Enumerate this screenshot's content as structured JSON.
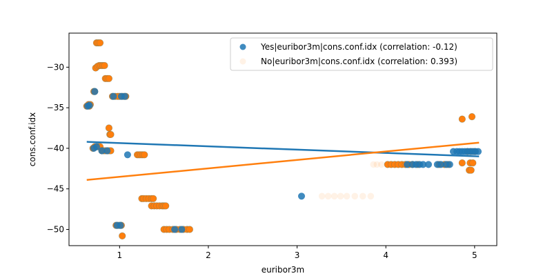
{
  "chart_data": {
    "type": "scatter",
    "xlabel": "euribor3m",
    "ylabel": "cons.conf.idx",
    "xlim": [
      0.43,
      5.25
    ],
    "ylim": [
      -52.0,
      -25.8
    ],
    "xticks": [
      1,
      2,
      3,
      4,
      5
    ],
    "yticks": [
      -50,
      -45,
      -40,
      -35,
      -30
    ],
    "grid": false,
    "legend_position": "top-right",
    "series": [
      {
        "name": "No|euribor3m|cons.conf.idx (correlation: 0.393)",
        "color": "#ff7f0e",
        "trend_line": [
          [
            0.63,
            -43.9
          ],
          [
            5.05,
            -39.3
          ]
        ],
        "points": [
          [
            0.63,
            -34.8
          ],
          [
            0.65,
            -34.6
          ],
          [
            0.66,
            -34.8
          ],
          [
            0.67,
            -34.6
          ],
          [
            0.7,
            -40.0
          ],
          [
            0.72,
            -39.8
          ],
          [
            0.74,
            -39.8
          ],
          [
            0.76,
            -39.8
          ],
          [
            0.78,
            -39.8
          ],
          [
            0.71,
            -33.0
          ],
          [
            0.72,
            -33.0
          ],
          [
            0.73,
            -30.1
          ],
          [
            0.75,
            -29.9
          ],
          [
            0.77,
            -29.8
          ],
          [
            0.79,
            -29.8
          ],
          [
            0.81,
            -29.8
          ],
          [
            0.83,
            -29.8
          ],
          [
            0.74,
            -27.0
          ],
          [
            0.76,
            -27.0
          ],
          [
            0.78,
            -27.0
          ],
          [
            0.8,
            -40.3
          ],
          [
            0.82,
            -40.3
          ],
          [
            0.84,
            -40.3
          ],
          [
            0.86,
            -40.3
          ],
          [
            0.88,
            -40.3
          ],
          [
            0.9,
            -40.3
          ],
          [
            0.84,
            -31.4
          ],
          [
            0.86,
            -31.4
          ],
          [
            0.88,
            -31.4
          ],
          [
            0.88,
            -37.5
          ],
          [
            0.89,
            -38.3
          ],
          [
            0.9,
            -38.3
          ],
          [
            0.92,
            -33.6
          ],
          [
            0.95,
            -33.6
          ],
          [
            0.98,
            -33.6
          ],
          [
            1.0,
            -33.6
          ],
          [
            1.03,
            -33.6
          ],
          [
            1.05,
            -33.6
          ],
          [
            1.07,
            -33.6
          ],
          [
            0.96,
            -49.5
          ],
          [
            0.98,
            -49.5
          ],
          [
            1.0,
            -49.5
          ],
          [
            1.02,
            -49.5
          ],
          [
            1.03,
            -50.8
          ],
          [
            1.2,
            -40.8
          ],
          [
            1.22,
            -40.8
          ],
          [
            1.24,
            -40.8
          ],
          [
            1.26,
            -40.8
          ],
          [
            1.28,
            -40.8
          ],
          [
            1.25,
            -46.2
          ],
          [
            1.27,
            -46.2
          ],
          [
            1.3,
            -46.2
          ],
          [
            1.33,
            -46.2
          ],
          [
            1.36,
            -46.2
          ],
          [
            1.38,
            -46.2
          ],
          [
            1.36,
            -47.1
          ],
          [
            1.39,
            -47.1
          ],
          [
            1.42,
            -47.1
          ],
          [
            1.45,
            -47.1
          ],
          [
            1.48,
            -47.1
          ],
          [
            1.5,
            -47.1
          ],
          [
            1.52,
            -47.1
          ],
          [
            1.5,
            -50.0
          ],
          [
            1.53,
            -50.0
          ],
          [
            1.56,
            -50.0
          ],
          [
            1.6,
            -50.0
          ],
          [
            1.64,
            -50.0
          ],
          [
            1.68,
            -50.0
          ],
          [
            1.72,
            -50.0
          ],
          [
            1.76,
            -50.0
          ],
          [
            1.79,
            -50.0
          ],
          [
            4.02,
            -42.0
          ],
          [
            4.06,
            -42.0
          ],
          [
            4.1,
            -42.0
          ],
          [
            4.14,
            -42.0
          ],
          [
            4.18,
            -42.0
          ],
          [
            4.22,
            -42.0
          ],
          [
            4.26,
            -42.0
          ],
          [
            4.3,
            -42.0
          ],
          [
            4.36,
            -42.0
          ],
          [
            4.6,
            -42.0
          ],
          [
            4.66,
            -42.0
          ],
          [
            4.7,
            -42.0
          ],
          [
            4.86,
            -41.8
          ],
          [
            4.95,
            -41.8
          ],
          [
            4.98,
            -41.8
          ],
          [
            4.86,
            -36.4
          ],
          [
            4.97,
            -36.1
          ],
          [
            4.94,
            -42.7
          ],
          [
            4.96,
            -42.7
          ],
          [
            4.92,
            -40.4
          ],
          [
            4.96,
            -40.4
          ],
          [
            5.0,
            -40.4
          ]
        ]
      },
      {
        "name": "Yes|euribor3m|cons.conf.idx (correlation: -0.12)",
        "color": "#1f77b4",
        "trend_line": [
          [
            0.63,
            -39.2
          ],
          [
            5.05,
            -41.0
          ]
        ],
        "points": [
          [
            0.64,
            -34.8
          ],
          [
            0.66,
            -34.7
          ],
          [
            0.71,
            -40.0
          ],
          [
            0.74,
            -39.8
          ],
          [
            0.72,
            -33.0
          ],
          [
            0.8,
            -40.3
          ],
          [
            0.86,
            -40.3
          ],
          [
            0.93,
            -33.6
          ],
          [
            1.02,
            -33.6
          ],
          [
            1.06,
            -33.6
          ],
          [
            0.97,
            -49.5
          ],
          [
            1.01,
            -49.5
          ],
          [
            1.09,
            -40.8
          ],
          [
            1.62,
            -50.0
          ],
          [
            1.7,
            -50.0
          ],
          [
            3.05,
            -45.9
          ],
          [
            4.24,
            -42.0
          ],
          [
            4.3,
            -42.0
          ],
          [
            4.34,
            -42.0
          ],
          [
            4.38,
            -42.0
          ],
          [
            4.42,
            -42.0
          ],
          [
            4.48,
            -42.0
          ],
          [
            4.58,
            -42.0
          ],
          [
            4.62,
            -42.0
          ],
          [
            4.68,
            -42.0
          ],
          [
            4.72,
            -42.0
          ],
          [
            4.76,
            -40.4
          ],
          [
            4.8,
            -40.4
          ],
          [
            4.83,
            -40.4
          ],
          [
            4.86,
            -40.4
          ],
          [
            4.89,
            -40.4
          ],
          [
            4.92,
            -40.4
          ],
          [
            4.95,
            -40.4
          ],
          [
            4.98,
            -40.4
          ],
          [
            5.01,
            -40.4
          ],
          [
            5.04,
            -40.4
          ]
        ]
      },
      {
        "name": "No|euribor3m|cons.conf.idx (correlation: 0.393)",
        "color": "#ff7f0e",
        "faint": true,
        "points": [
          [
            3.28,
            -45.9
          ],
          [
            3.35,
            -45.9
          ],
          [
            3.42,
            -45.9
          ],
          [
            3.49,
            -45.9
          ],
          [
            3.56,
            -45.9
          ],
          [
            3.65,
            -45.9
          ],
          [
            3.74,
            -45.9
          ],
          [
            3.83,
            -45.9
          ],
          [
            3.86,
            -42.0
          ],
          [
            3.9,
            -42.0
          ],
          [
            3.95,
            -42.0
          ]
        ]
      }
    ],
    "legend": [
      {
        "label": "Yes|euribor3m|cons.conf.idx (correlation: -0.12)",
        "color": "#1f77b4",
        "faint": false
      },
      {
        "label": "No|euribor3m|cons.conf.idx (correlation: 0.393)",
        "color": "#ff7f0e",
        "faint": true
      }
    ]
  }
}
